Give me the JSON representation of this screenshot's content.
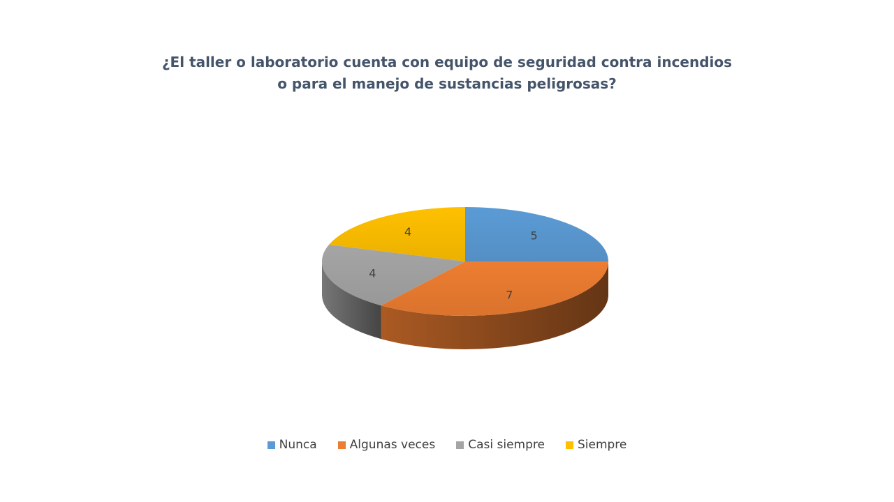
{
  "chart_data": {
    "type": "pie",
    "title_lines": [
      "¿El taller o laboratorio cuenta con equipo de seguridad contra incendios",
      "o para el manejo de sustancias peligrosas?"
    ],
    "categories": [
      "Nunca",
      "Algunas veces",
      "Casi siempre",
      "Siempre"
    ],
    "values": [
      5,
      7,
      4,
      4
    ],
    "data_labels": [
      "5",
      "7",
      "4",
      "4"
    ],
    "colors": [
      "#5b9bd5",
      "#ed7d31",
      "#a5a5a5",
      "#ffc000"
    ],
    "legend_position": "bottom",
    "style": "3d"
  }
}
